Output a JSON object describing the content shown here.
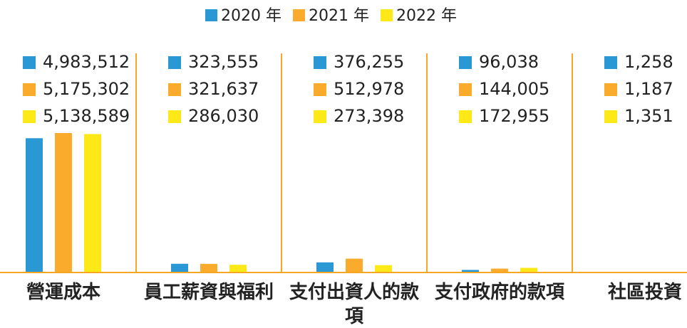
{
  "chart_data": {
    "type": "bar",
    "categories": [
      "營運成本",
      "員工薪資與福利",
      "支付出資人的款項",
      "支付政府的款項",
      "社區投資"
    ],
    "series": [
      {
        "name": "2020 年",
        "color": "#2a98d4",
        "values": [
          4983512,
          323555,
          376255,
          96038,
          1258
        ],
        "value_labels": [
          "4,983,512",
          "323,555",
          "376,255",
          "96,038",
          "1,258"
        ]
      },
      {
        "name": "2021 年",
        "color": "#fbab2b",
        "values": [
          5175302,
          321637,
          512978,
          144005,
          1187
        ],
        "value_labels": [
          "5,175,302",
          "321,637",
          "512,978",
          "144,005",
          "1,187"
        ]
      },
      {
        "name": "2022 年",
        "color": "#fde818",
        "values": [
          5138589,
          286030,
          273398,
          172955,
          1351
        ],
        "value_labels": [
          "5,138,589",
          "286,030",
          "273,398",
          "172,955",
          "1,351"
        ]
      }
    ],
    "legend": "top"
  }
}
